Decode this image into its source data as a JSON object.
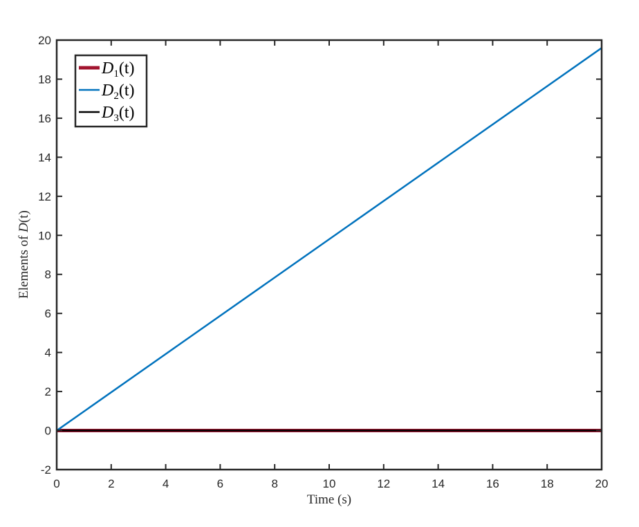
{
  "chart_data": {
    "type": "line",
    "xlabel": "Time (s)",
    "ylabel_prefix": "Elements of ",
    "ylabel_symbol": "D",
    "ylabel_arg": "(t)",
    "xlim": [
      0,
      20
    ],
    "ylim": [
      -2,
      20
    ],
    "xticks": [
      0,
      2,
      4,
      6,
      8,
      10,
      12,
      14,
      16,
      18,
      20
    ],
    "yticks": [
      -2,
      0,
      2,
      4,
      6,
      8,
      10,
      12,
      14,
      16,
      18,
      20
    ],
    "grid": false,
    "legend_position": "top-left",
    "series": [
      {
        "name": "D",
        "subscript": "1",
        "arg": "(t)",
        "color": "#A2142F",
        "x": [
          0,
          20
        ],
        "y": [
          0,
          0
        ]
      },
      {
        "name": "D",
        "subscript": "2",
        "arg": "(t)",
        "color": "#0072BD",
        "x": [
          0,
          20
        ],
        "y": [
          0,
          19.6
        ]
      },
      {
        "name": "D",
        "subscript": "3",
        "arg": "(t)",
        "color": "#000000",
        "x": [
          0,
          20
        ],
        "y": [
          0,
          0
        ]
      }
    ]
  }
}
